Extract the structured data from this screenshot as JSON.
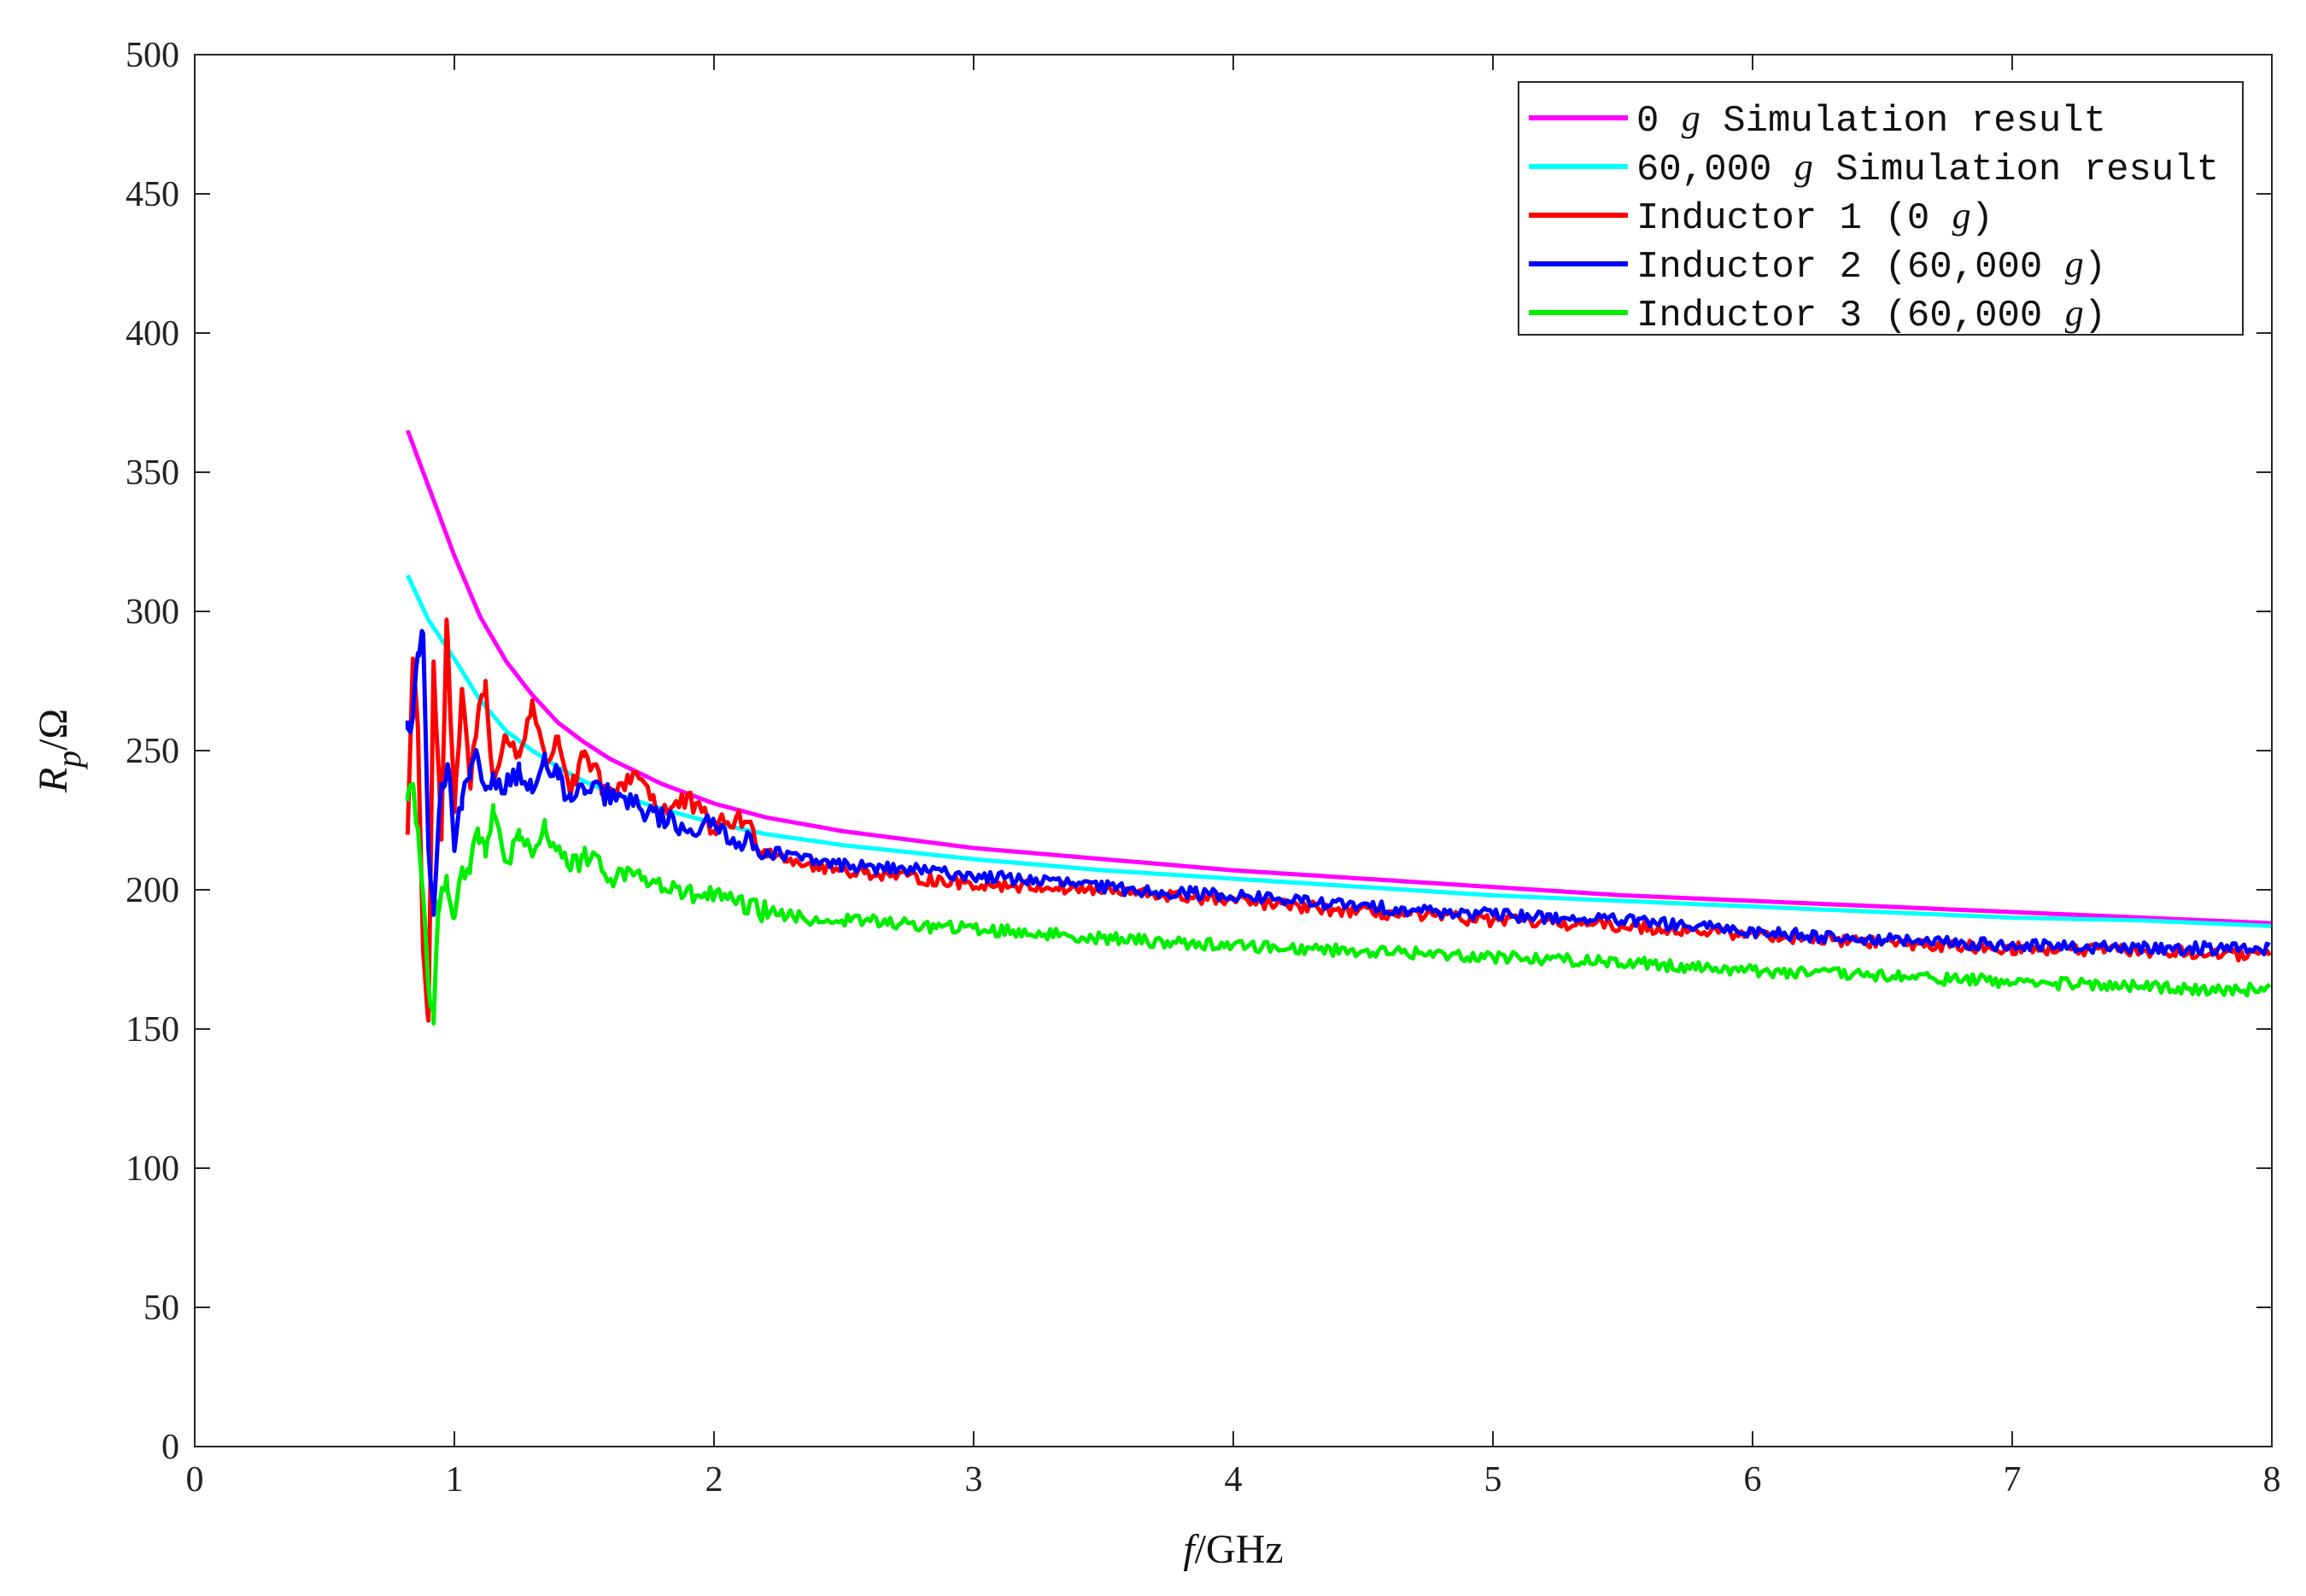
{
  "chart_data": {
    "type": "line",
    "xlabel": {
      "italic": "f",
      "rest": "/GHz"
    },
    "ylabel": {
      "main": "R",
      "sub": "p",
      "unit": "/Ω"
    },
    "xlim": [
      0,
      8
    ],
    "ylim": [
      0,
      500
    ],
    "x_ticks": [
      "0",
      "1",
      "2",
      "3",
      "4",
      "5",
      "6",
      "7",
      "8"
    ],
    "y_ticks": [
      "0",
      "50",
      "100",
      "150",
      "200",
      "250",
      "300",
      "350",
      "400",
      "450",
      "500"
    ],
    "grid": false,
    "legend_position": "top-right",
    "series": [
      {
        "name": "0 g Simulation result",
        "legend_parts": [
          "0 ",
          "g",
          " Simulation result"
        ],
        "color": "#ff00ff",
        "style": "smooth",
        "x": [
          0.82,
          0.9,
          1.0,
          1.1,
          1.2,
          1.3,
          1.4,
          1.5,
          1.6,
          1.8,
          2.0,
          2.2,
          2.5,
          3.0,
          3.5,
          4.0,
          4.5,
          5.0,
          5.5,
          6.0,
          6.5,
          7.0,
          7.5,
          8.0
        ],
        "values": [
          365,
          345,
          320,
          298,
          282,
          270,
          260,
          253,
          247,
          238,
          231,
          226,
          221,
          215,
          211,
          207,
          204,
          201,
          198,
          196,
          194,
          192,
          190,
          188
        ]
      },
      {
        "name": "60,000 g Simulation result",
        "legend_parts": [
          "60,000 ",
          "g",
          " Simulation result"
        ],
        "color": "#00ffff",
        "style": "smooth",
        "x": [
          0.82,
          0.9,
          1.0,
          1.1,
          1.2,
          1.3,
          1.4,
          1.5,
          1.6,
          1.8,
          2.0,
          2.2,
          2.5,
          3.0,
          3.5,
          4.0,
          4.5,
          5.0,
          5.5,
          6.0,
          6.5,
          7.0,
          7.5,
          8.0
        ],
        "values": [
          313,
          297,
          283,
          268,
          257,
          250,
          244,
          239,
          235,
          229,
          224,
          220,
          216,
          211,
          207,
          204,
          201,
          198,
          196,
          194,
          192,
          190,
          189,
          187
        ]
      },
      {
        "name": "Inductor 1 (0 g)",
        "legend_parts": [
          "Inductor 1 (0 ",
          "g",
          ")"
        ],
        "color": "#ff0000",
        "style": "noisy",
        "x": [
          0.82,
          0.84,
          0.86,
          0.88,
          0.9,
          0.92,
          0.95,
          0.97,
          1.0,
          1.03,
          1.06,
          1.09,
          1.12,
          1.15,
          1.2,
          1.25,
          1.3,
          1.35,
          1.4,
          1.45,
          1.5,
          1.6,
          1.7,
          1.8,
          1.9,
          2.0,
          2.1,
          2.2,
          2.4,
          2.6,
          2.8,
          3.0,
          3.3,
          3.6,
          4.0,
          4.5,
          5.0,
          5.5,
          6.0,
          6.5,
          7.0,
          7.5,
          8.0
        ],
        "values": [
          220,
          283,
          258,
          178,
          153,
          282,
          218,
          297,
          228,
          272,
          238,
          262,
          275,
          238,
          255,
          248,
          268,
          245,
          255,
          235,
          248,
          233,
          243,
          228,
          232,
          222,
          226,
          214,
          208,
          206,
          204,
          202,
          201,
          199,
          196,
          192,
          189,
          187,
          184,
          181,
          179,
          178,
          176
        ]
      },
      {
        "name": "Inductor 2 (60,000 g)",
        "legend_parts": [
          "Inductor 2 (60,000 ",
          "g",
          ")"
        ],
        "color": "#0000ff",
        "style": "noisy",
        "x": [
          0.82,
          0.84,
          0.86,
          0.88,
          0.9,
          0.92,
          0.95,
          0.98,
          1.0,
          1.03,
          1.06,
          1.09,
          1.12,
          1.15,
          1.2,
          1.25,
          1.3,
          1.35,
          1.4,
          1.45,
          1.5,
          1.6,
          1.7,
          1.8,
          1.9,
          2.0,
          2.1,
          2.2,
          2.4,
          2.6,
          2.8,
          3.0,
          3.3,
          3.6,
          4.0,
          4.5,
          5.0,
          5.5,
          6.0,
          6.5,
          7.0,
          7.5,
          8.0
        ],
        "values": [
          258,
          262,
          285,
          292,
          215,
          191,
          238,
          242,
          214,
          233,
          240,
          248,
          236,
          240,
          238,
          243,
          235,
          246,
          240,
          232,
          236,
          234,
          230,
          226,
          222,
          223,
          218,
          214,
          210,
          208,
          207,
          205,
          203,
          200,
          198,
          194,
          191,
          189,
          185,
          182,
          180,
          179,
          179
        ]
      },
      {
        "name": "Inductor 3 (60,000 g)",
        "legend_parts": [
          "Inductor 3 (60,000 ",
          "g",
          ")"
        ],
        "color": "#00ee00",
        "style": "noisy",
        "x": [
          0.82,
          0.84,
          0.86,
          0.88,
          0.9,
          0.92,
          0.94,
          0.97,
          1.0,
          1.03,
          1.06,
          1.09,
          1.12,
          1.15,
          1.2,
          1.25,
          1.3,
          1.35,
          1.4,
          1.45,
          1.5,
          1.6,
          1.7,
          1.8,
          1.9,
          2.0,
          2.1,
          2.2,
          2.4,
          2.6,
          2.8,
          3.0,
          3.3,
          3.6,
          4.0,
          4.5,
          5.0,
          5.5,
          6.0,
          6.5,
          7.0,
          7.5,
          8.0
        ],
        "values": [
          234,
          238,
          222,
          198,
          165,
          152,
          196,
          205,
          190,
          208,
          206,
          222,
          212,
          228,
          210,
          218,
          212,
          222,
          215,
          208,
          212,
          205,
          206,
          201,
          198,
          198,
          194,
          192,
          189,
          189,
          187,
          186,
          184,
          182,
          180,
          178,
          176,
          174,
          171,
          169,
          167,
          165,
          164
        ]
      }
    ]
  }
}
